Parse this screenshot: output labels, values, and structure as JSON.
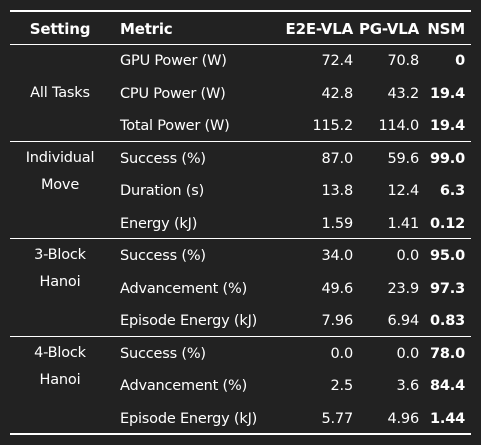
{
  "header": {
    "setting": "Setting",
    "metric": "Metric",
    "e2e": "E2E-VLA",
    "pg": "PG-VLA",
    "nsm": "NSM"
  },
  "groups": [
    {
      "setting_lines": [
        "All Tasks"
      ],
      "rows": [
        {
          "metric": "GPU Power (W)",
          "e2e": "72.4",
          "pg": "70.8",
          "nsm": "0"
        },
        {
          "metric": "CPU Power (W)",
          "e2e": "42.8",
          "pg": "43.2",
          "nsm": "19.4"
        },
        {
          "metric": "Total Power (W)",
          "e2e": "115.2",
          "pg": "114.0",
          "nsm": "19.4"
        }
      ]
    },
    {
      "setting_lines": [
        "Individual",
        "Move"
      ],
      "rows": [
        {
          "metric": "Success (%)",
          "e2e": "87.0",
          "pg": "59.6",
          "nsm": "99.0"
        },
        {
          "metric": "Duration (s)",
          "e2e": "13.8",
          "pg": "12.4",
          "nsm": "6.3"
        },
        {
          "metric": "Energy (kJ)",
          "e2e": "1.59",
          "pg": "1.41",
          "nsm": "0.12"
        }
      ]
    },
    {
      "setting_lines": [
        "3-Block",
        "Hanoi"
      ],
      "rows": [
        {
          "metric": "Success (%)",
          "e2e": "34.0",
          "pg": "0.0",
          "nsm": "95.0"
        },
        {
          "metric": "Advancement (%)",
          "e2e": "49.6",
          "pg": "23.9",
          "nsm": "97.3"
        },
        {
          "metric": "Episode Energy (kJ)",
          "e2e": "7.96",
          "pg": "6.94",
          "nsm": "0.83"
        }
      ]
    },
    {
      "setting_lines": [
        "4-Block",
        "Hanoi"
      ],
      "rows": [
        {
          "metric": "Success (%)",
          "e2e": "0.0",
          "pg": "0.0",
          "nsm": "78.0"
        },
        {
          "metric": "Advancement (%)",
          "e2e": "2.5",
          "pg": "3.6",
          "nsm": "84.4"
        },
        {
          "metric": "Episode Energy (kJ)",
          "e2e": "5.77",
          "pg": "4.96",
          "nsm": "1.44"
        }
      ]
    }
  ]
}
